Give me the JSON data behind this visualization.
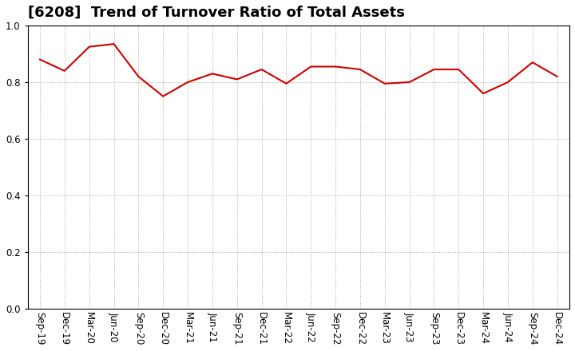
{
  "title": "[6208]  Trend of Turnover Ratio of Total Assets",
  "x_labels": [
    "Sep-19",
    "Dec-19",
    "Mar-20",
    "Jun-20",
    "Sep-20",
    "Dec-20",
    "Mar-21",
    "Jun-21",
    "Sep-21",
    "Dec-21",
    "Mar-22",
    "Jun-22",
    "Sep-22",
    "Dec-22",
    "Mar-23",
    "Jun-23",
    "Sep-23",
    "Dec-23",
    "Mar-24",
    "Jun-24",
    "Sep-24",
    "Dec-24"
  ],
  "values": [
    0.88,
    0.84,
    0.925,
    0.935,
    0.82,
    0.75,
    0.8,
    0.83,
    0.81,
    0.845,
    0.795,
    0.855,
    0.855,
    0.845,
    0.795,
    0.8,
    0.845,
    0.845,
    0.76,
    0.8,
    0.87,
    0.82
  ],
  "line_color": "#cc0000",
  "background_color": "#ffffff",
  "grid_color": "#999999",
  "ylim": [
    0.0,
    1.0
  ],
  "yticks": [
    0.0,
    0.2,
    0.4,
    0.6,
    0.8,
    1.0
  ],
  "title_fontsize": 13,
  "tick_fontsize": 8.5
}
